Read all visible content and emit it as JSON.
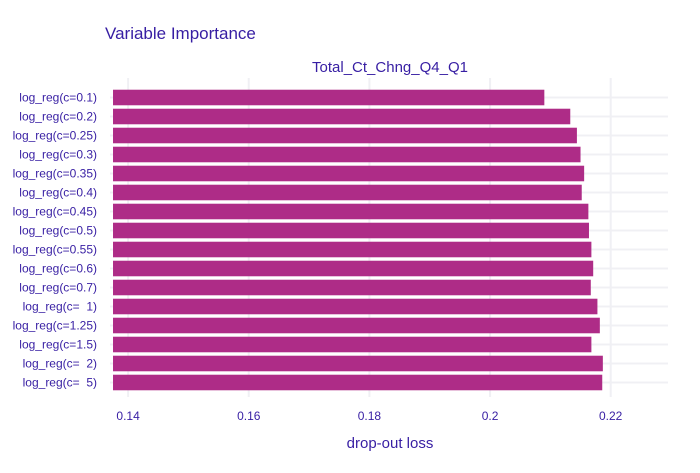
{
  "chart_data": {
    "type": "bar",
    "orientation": "horizontal",
    "title": "Variable Importance",
    "subtitle": "Total_Ct_Chng_Q4_Q1",
    "xlabel": "drop-out loss",
    "ylabel": "",
    "xlim": [
      0.137,
      0.2295
    ],
    "x_ticks": [
      0.14,
      0.16,
      0.18,
      0.2,
      0.22
    ],
    "x_tick_labels": [
      "0.14",
      "0.16",
      "0.18",
      "0.2",
      "0.22"
    ],
    "grid": true,
    "bar_color": "#ae2c87",
    "grid_color": "#f0f0f4",
    "text_color": "#371ea3",
    "bar_baseline": 0.1375,
    "categories": [
      "log_reg(c=0.1)",
      "log_reg(c=0.2)",
      "log_reg(c=0.25)",
      "log_reg(c=0.3)",
      "log_reg(c=0.35)",
      "log_reg(c=0.4)",
      "log_reg(c=0.45)",
      "log_reg(c=0.5)",
      "log_reg(c=0.55)",
      "log_reg(c=0.6)",
      "log_reg(c=0.7)",
      "log_reg(c=  1)",
      "log_reg(c=1.25)",
      "log_reg(c=1.5)",
      "log_reg(c=  2)",
      "log_reg(c=  5)"
    ],
    "values": [
      0.209,
      0.2133,
      0.2144,
      0.215,
      0.2156,
      0.2152,
      0.2163,
      0.2164,
      0.2168,
      0.2171,
      0.2167,
      0.2178,
      0.2182,
      0.2168,
      0.2187,
      0.2186
    ]
  }
}
